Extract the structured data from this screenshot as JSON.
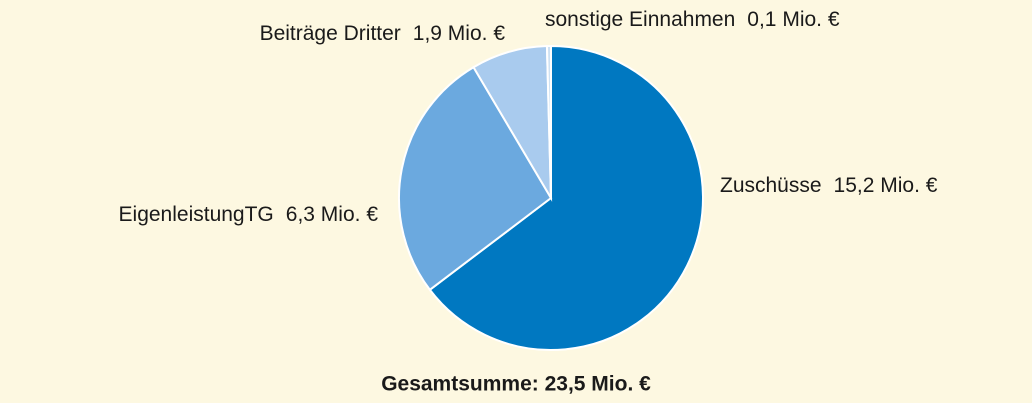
{
  "chart_data": {
    "type": "pie",
    "categories": [
      "Zuschüsse",
      "EigenleistungTG",
      "Beiträge Dritter",
      "sonstige Einnahmen"
    ],
    "values": [
      15.2,
      6.3,
      1.9,
      0.1
    ],
    "value_labels": [
      "15,2 Mio. €",
      "6,3 Mio. €",
      "1,9 Mio. €",
      "0,1 Mio. €"
    ],
    "colors": [
      "#0078c1",
      "#6ba9df",
      "#a9cbee",
      "#cfe2f3"
    ],
    "total_label": "Gesamtsumme: 23,5 Mio. €"
  }
}
